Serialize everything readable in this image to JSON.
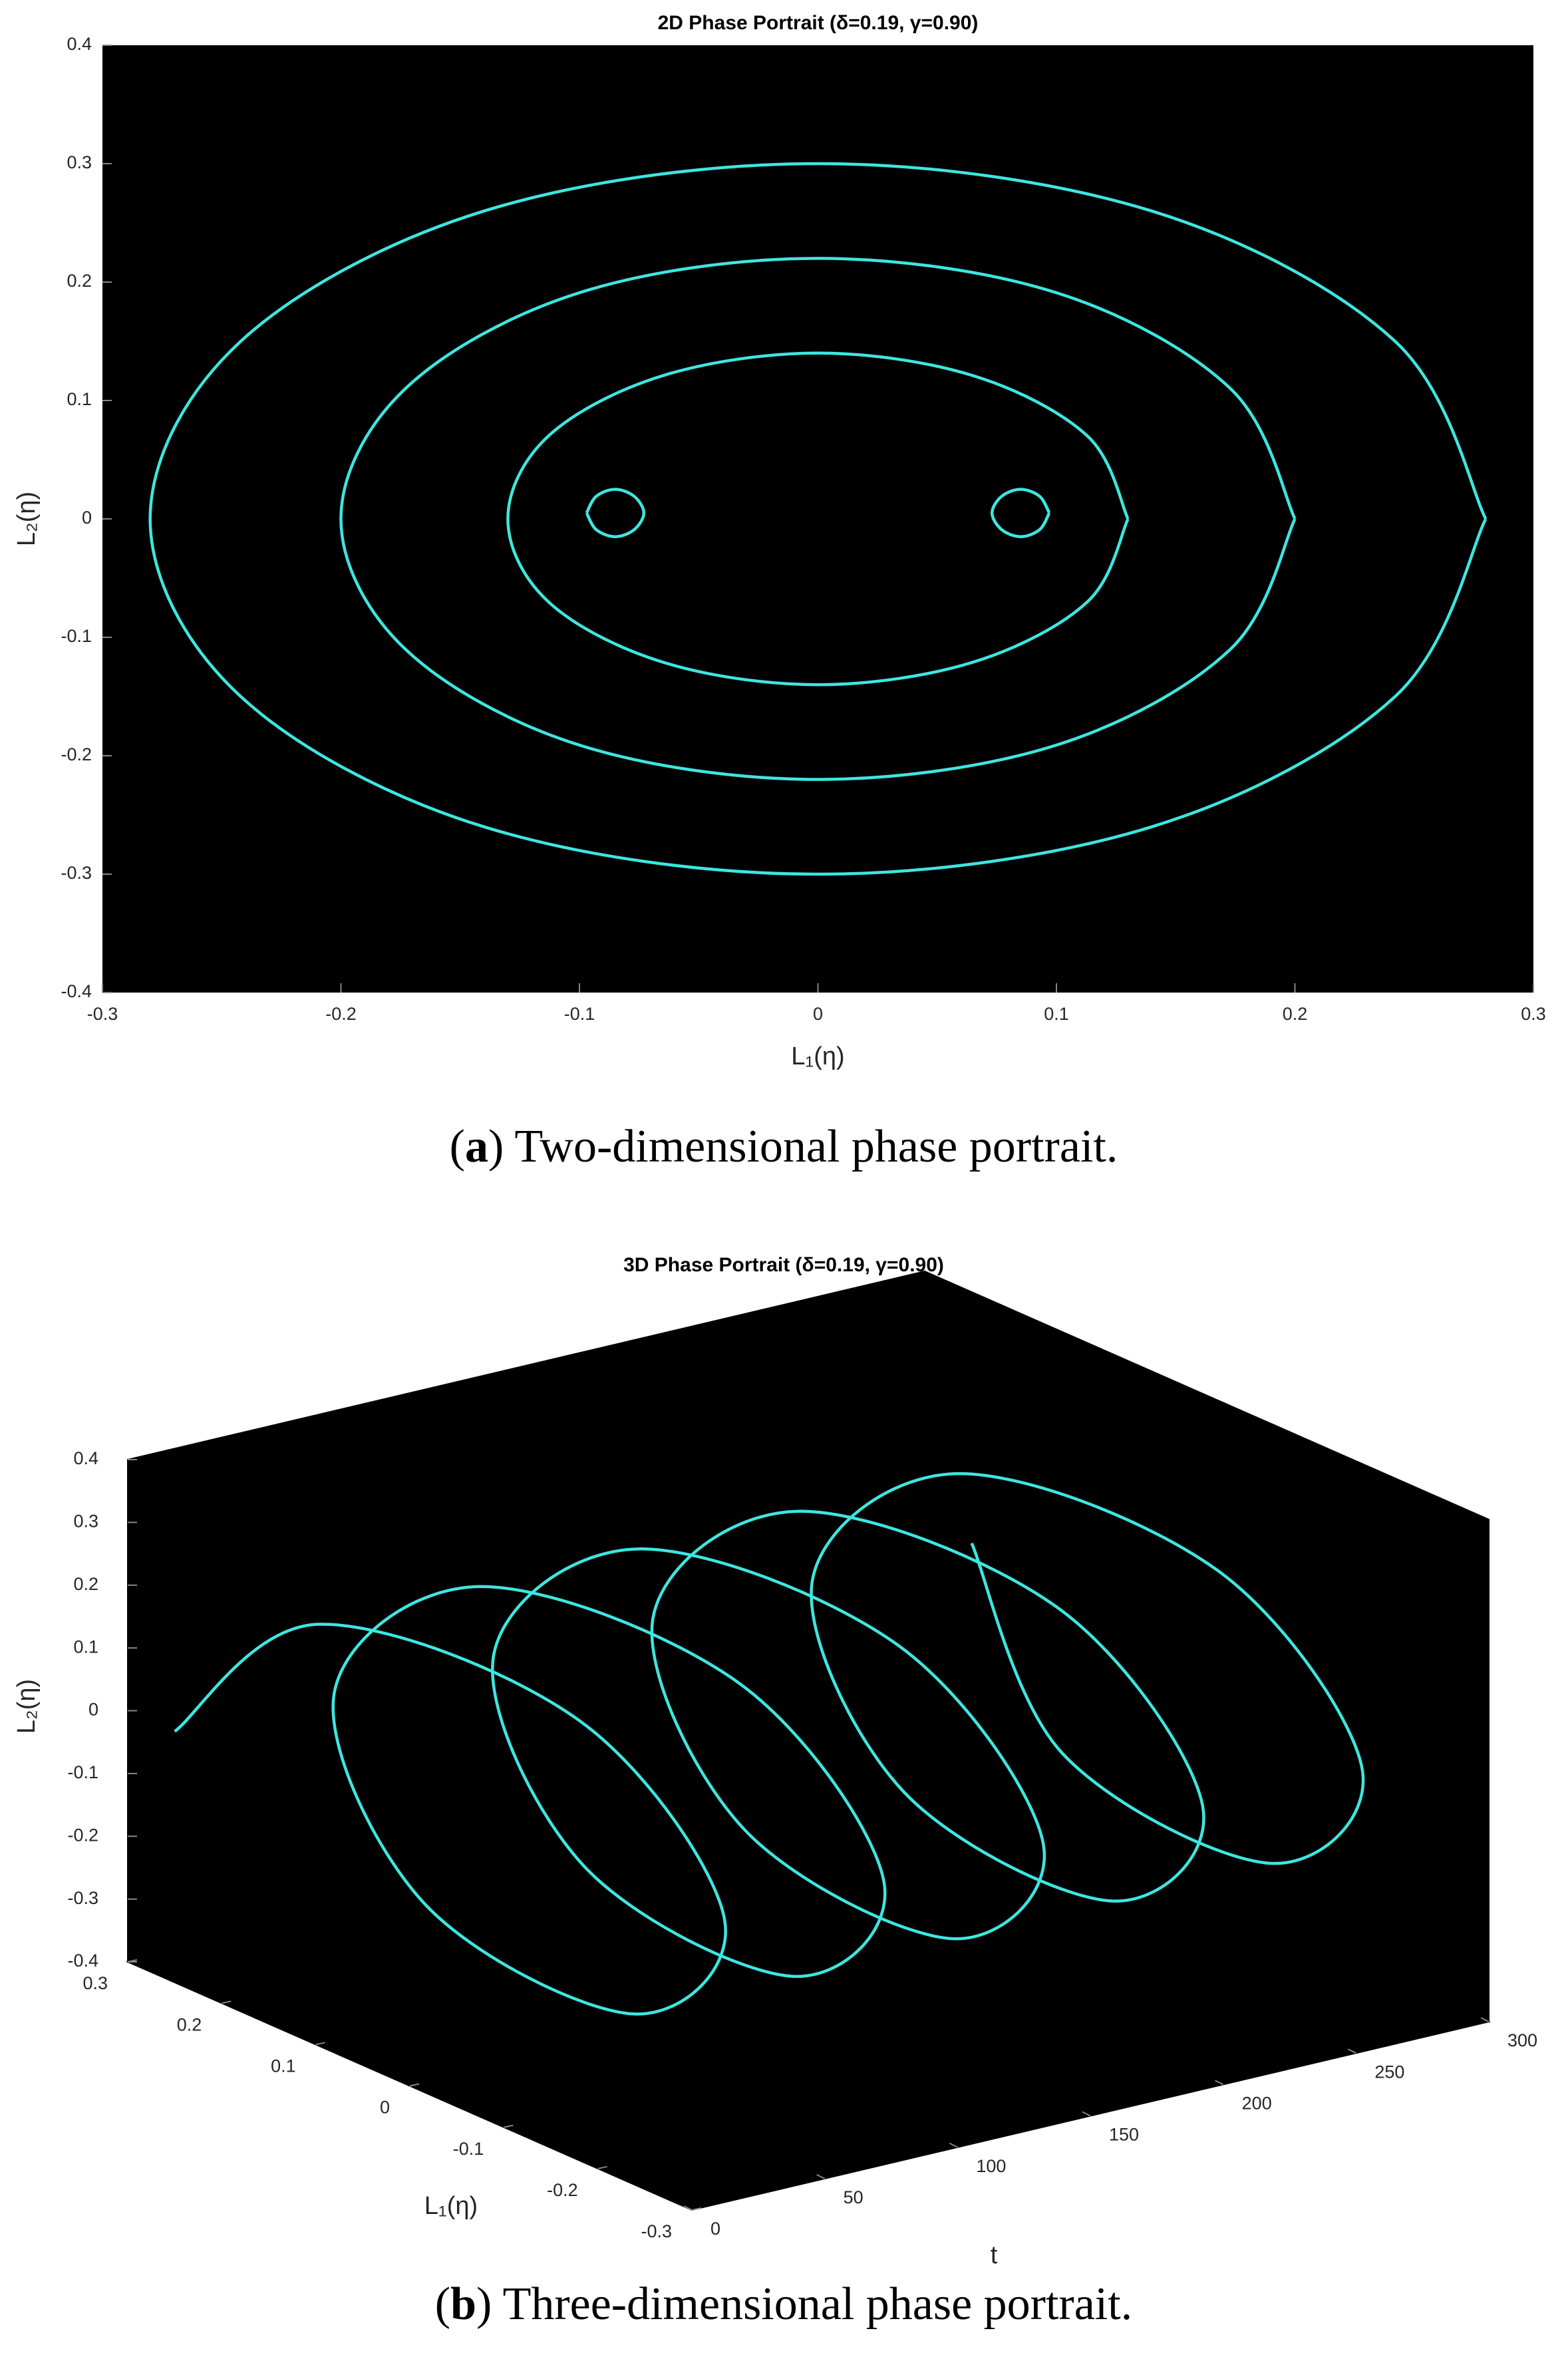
{
  "chart_data": [
    {
      "type": "line",
      "title": "2D Phase Portrait (δ=0.19, γ=0.90)",
      "xlabel": "L₁(η)",
      "ylabel": "L₂(η)",
      "caption": [
        "(",
        "a",
        ") Two-dimensional phase portrait."
      ],
      "color": "#3ee6e0",
      "xlim": [
        -0.3,
        0.3
      ],
      "ylim": [
        -0.4,
        0.4
      ],
      "xticks": [
        -0.3,
        -0.2,
        -0.1,
        0,
        0.1,
        0.2,
        0.3
      ],
      "yticks": [
        -0.4,
        -0.3,
        -0.2,
        -0.1,
        0,
        0.1,
        0.2,
        0.3,
        0.4
      ],
      "x": [
        0.28,
        0.242,
        0.14,
        0,
        -0.14,
        -0.242,
        -0.28,
        -0.242,
        -0.14,
        0,
        0.14,
        0.242,
        0.28,
        null,
        0.2,
        0.173,
        0.1,
        0,
        -0.1,
        -0.173,
        -0.2,
        -0.173,
        -0.1,
        0,
        0.1,
        0.173,
        0.2,
        null,
        0.13,
        0.113,
        0.065,
        0,
        -0.065,
        -0.113,
        -0.13,
        -0.113,
        -0.065,
        0,
        0.065,
        0.113,
        0.13,
        null,
        0.097,
        0.093,
        0.085,
        0.077,
        0.073,
        0.077,
        0.085,
        0.093,
        0.097,
        null,
        -0.097,
        -0.093,
        -0.085,
        -0.077,
        -0.073,
        -0.077,
        -0.085,
        -0.093,
        -0.097
      ],
      "y": [
        0,
        0.15,
        0.26,
        0.3,
        0.26,
        0.15,
        0,
        -0.15,
        -0.26,
        -0.3,
        -0.26,
        -0.15,
        0,
        null,
        0,
        0.11,
        0.191,
        0.22,
        0.191,
        0.11,
        0,
        -0.11,
        -0.191,
        -0.22,
        -0.191,
        -0.11,
        0,
        null,
        0,
        0.07,
        0.121,
        0.14,
        0.121,
        0.07,
        0,
        -0.07,
        -0.121,
        -0.14,
        -0.121,
        -0.07,
        0,
        null,
        0.005,
        0.019,
        0.025,
        0.019,
        0.005,
        -0.009,
        -0.015,
        -0.009,
        0.005,
        null,
        0.005,
        0.019,
        0.025,
        0.019,
        0.005,
        -0.009,
        -0.015,
        -0.009,
        0.005
      ]
    },
    {
      "type": "line3d",
      "title": "3D Phase Portrait (δ=0.19, γ=0.90)",
      "xlabel": "L₁(η)",
      "ylabel": "L₂(η)",
      "tlabel": "t",
      "caption": [
        "(",
        "b",
        ") Three-dimensional phase portrait."
      ],
      "color": "#3ee6e0",
      "xlim": [
        -0.3,
        0.3
      ],
      "ylim": [
        -0.4,
        0.4
      ],
      "tlim": [
        0,
        300
      ],
      "xticks": [
        -0.3,
        -0.2,
        -0.1,
        0,
        0.1,
        0.2,
        0.3
      ],
      "yticks": [
        -0.4,
        -0.3,
        -0.2,
        -0.1,
        0,
        0.1,
        0.2,
        0.3,
        0.4
      ],
      "tticks": [
        0,
        50,
        100,
        150,
        200,
        250,
        300
      ],
      "t": [
        0,
        10,
        20,
        30,
        40,
        50,
        60,
        70,
        80,
        90,
        100,
        110,
        120,
        130,
        140,
        150,
        160,
        170,
        180,
        190,
        200,
        210,
        220,
        230,
        240,
        250,
        260,
        270,
        280,
        290,
        300
      ],
      "x": [
        0.25,
        0.125,
        -0.125,
        -0.25,
        -0.125,
        0.125,
        0.25,
        0.125,
        -0.125,
        -0.25,
        -0.125,
        0.125,
        0.25,
        0.125,
        -0.125,
        -0.25,
        -0.125,
        0.125,
        0.25,
        0.125,
        -0.125,
        -0.25,
        -0.125,
        0.125,
        0.25,
        0.125,
        -0.125,
        -0.25,
        -0.125,
        0.125,
        0.25
      ],
      "y": [
        0,
        0.243,
        0.243,
        0,
        -0.243,
        -0.243,
        0,
        0.243,
        0.243,
        0,
        -0.243,
        -0.243,
        0,
        0.243,
        0.243,
        0,
        -0.243,
        -0.243,
        0,
        0.243,
        0.243,
        0,
        -0.243,
        -0.243,
        0,
        0.243,
        0.243,
        0,
        -0.243,
        -0.243,
        0
      ]
    }
  ]
}
